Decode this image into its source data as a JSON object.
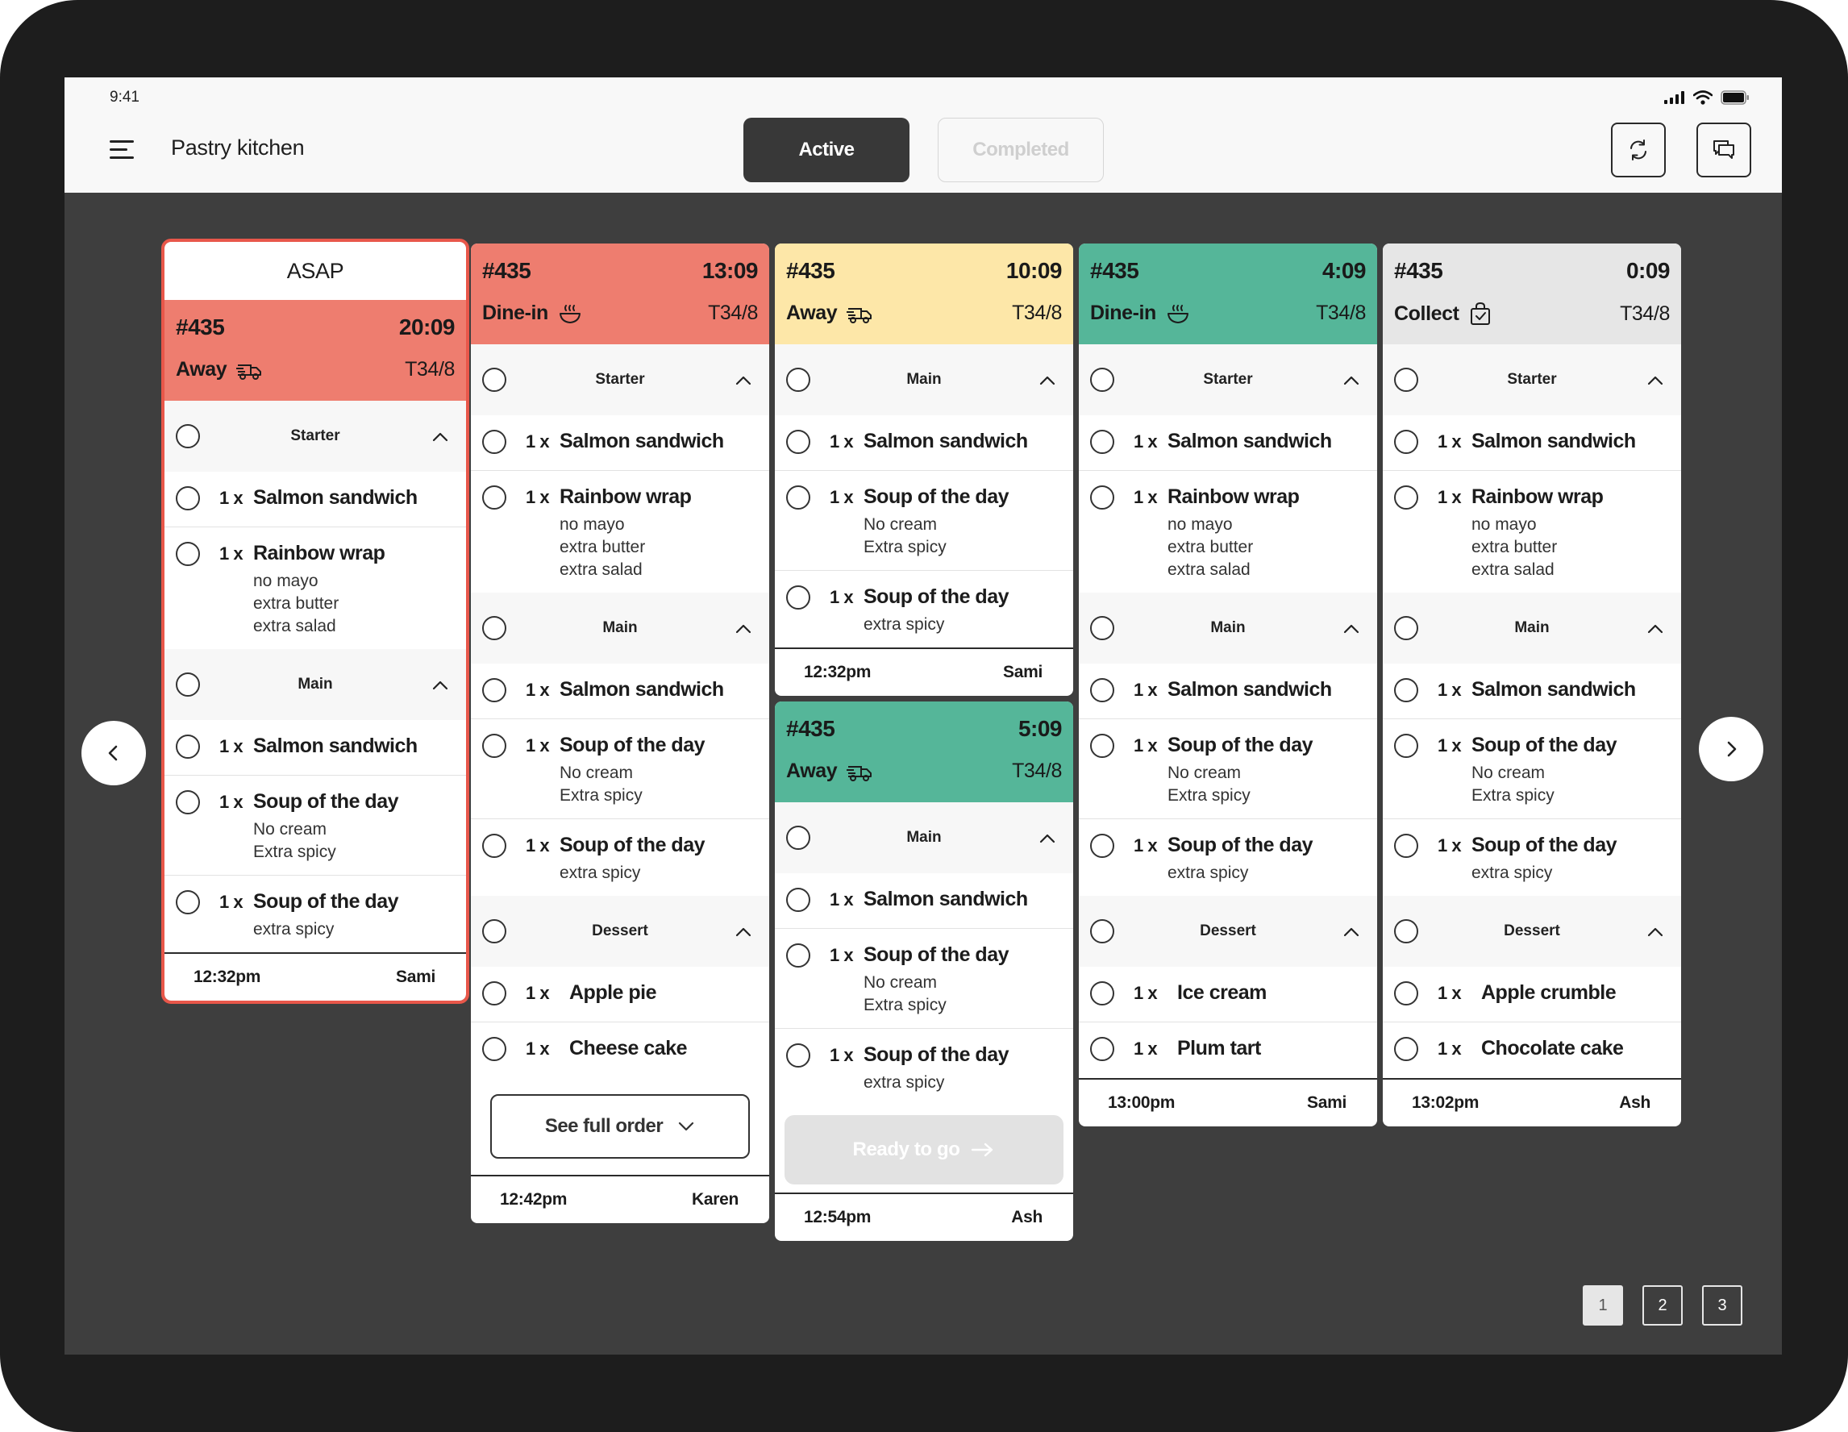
{
  "status_bar": {
    "time": "9:41"
  },
  "header": {
    "title": "Pastry kitchen",
    "tabs": [
      {
        "label": "Active",
        "selected": true
      },
      {
        "label": "Completed",
        "selected": false
      }
    ]
  },
  "columns": [
    {
      "asap_label": "ASAP",
      "order_no": "#435",
      "timer": "20:09",
      "mode": "Away",
      "mode_icon": "delivery-truck-icon",
      "table": "T34/8",
      "color": "#ee7d6f",
      "sections": [
        {
          "name": "Starter",
          "items": [
            {
              "qty": "1 x",
              "name": "Salmon sandwich",
              "mods": []
            },
            {
              "qty": "1 x",
              "name": "Rainbow wrap",
              "mods": [
                "no mayo",
                "extra butter",
                "extra salad"
              ]
            }
          ]
        },
        {
          "name": "Main",
          "items": [
            {
              "qty": "1 x",
              "name": "Salmon sandwich",
              "mods": []
            },
            {
              "qty": "1 x",
              "name": "Soup of the day",
              "mods": [
                "No cream",
                "Extra spicy"
              ]
            },
            {
              "qty": "1 x",
              "name": "Soup of the day",
              "mods": [
                "extra spicy"
              ]
            }
          ]
        }
      ],
      "footer_time": "12:32pm",
      "footer_staff": "Sami"
    },
    {
      "order_no": "#435",
      "timer": "13:09",
      "mode": "Dine-in",
      "mode_icon": "dine-in-bowl-icon",
      "table": "T34/8",
      "color": "#ee7d6f",
      "sections": [
        {
          "name": "Starter",
          "items": [
            {
              "qty": "1 x",
              "name": "Salmon sandwich",
              "mods": []
            },
            {
              "qty": "1 x",
              "name": "Rainbow wrap",
              "mods": [
                "no mayo",
                "extra butter",
                "extra salad"
              ]
            }
          ]
        },
        {
          "name": "Main",
          "items": [
            {
              "qty": "1 x",
              "name": "Salmon sandwich",
              "mods": []
            },
            {
              "qty": "1 x",
              "name": "Soup of the day",
              "mods": [
                "No cream",
                "Extra spicy"
              ]
            },
            {
              "qty": "1 x",
              "name": "Soup of the day",
              "mods": [
                "extra spicy"
              ]
            }
          ]
        },
        {
          "name": "Dessert",
          "items": [
            {
              "qty": "1 x",
              "name": "Apple pie",
              "mods": []
            },
            {
              "qty": "1 x",
              "name": "Cheese cake",
              "mods": []
            }
          ]
        }
      ],
      "full_order_label": "See full order",
      "footer_time": "12:42pm",
      "footer_staff": "Karen"
    },
    {
      "order_no": "#435",
      "timer": "10:09",
      "mode": "Away",
      "mode_icon": "delivery-truck-icon",
      "table": "T34/8",
      "color": "#fde7a8",
      "sections": [
        {
          "name": "Main",
          "items": [
            {
              "qty": "1 x",
              "name": "Salmon sandwich",
              "mods": []
            },
            {
              "qty": "1 x",
              "name": "Soup of the day",
              "mods": [
                "No cream",
                "Extra spicy"
              ]
            },
            {
              "qty": "1 x",
              "name": "Soup of the day",
              "mods": [
                "extra spicy"
              ]
            }
          ]
        }
      ],
      "footer_time": "12:32pm",
      "footer_staff": "Sami"
    },
    {
      "order_no": "#435",
      "timer": "5:09",
      "mode": "Away",
      "mode_icon": "delivery-truck-icon",
      "table": "T34/8",
      "color": "#55b699",
      "sections": [
        {
          "name": "Main",
          "items": [
            {
              "qty": "1 x",
              "name": "Salmon sandwich",
              "mods": []
            },
            {
              "qty": "1 x",
              "name": "Soup of the day",
              "mods": [
                "No cream",
                "Extra spicy"
              ]
            },
            {
              "qty": "1 x",
              "name": "Soup of the day",
              "mods": [
                "extra spicy"
              ]
            }
          ]
        }
      ],
      "ready_label": "Ready to go",
      "footer_time": "12:54pm",
      "footer_staff": "Ash"
    },
    {
      "order_no": "#435",
      "timer": "4:09",
      "mode": "Dine-in",
      "mode_icon": "dine-in-bowl-icon",
      "table": "T34/8",
      "color": "#55b699",
      "sections": [
        {
          "name": "Starter",
          "items": [
            {
              "qty": "1 x",
              "name": "Salmon sandwich",
              "mods": []
            },
            {
              "qty": "1 x",
              "name": "Rainbow wrap",
              "mods": [
                "no mayo",
                "extra butter",
                "extra salad"
              ]
            }
          ]
        },
        {
          "name": "Main",
          "items": [
            {
              "qty": "1 x",
              "name": "Salmon sandwich",
              "mods": []
            },
            {
              "qty": "1 x",
              "name": "Soup of the day",
              "mods": [
                "No cream",
                "Extra spicy"
              ]
            },
            {
              "qty": "1 x",
              "name": "Soup of the day",
              "mods": [
                "extra spicy"
              ]
            }
          ]
        },
        {
          "name": "Dessert",
          "items": [
            {
              "qty": "1 x",
              "name": "Ice cream",
              "mods": []
            },
            {
              "qty": "1 x",
              "name": "Plum tart",
              "mods": []
            }
          ]
        }
      ],
      "footer_time": "13:00pm",
      "footer_staff": "Sami"
    },
    {
      "order_no": "#435",
      "timer": "0:09",
      "mode": "Collect",
      "mode_icon": "collect-bag-icon",
      "table": "T34/8",
      "color": "#e6e6e6",
      "sections": [
        {
          "name": "Starter",
          "items": [
            {
              "qty": "1 x",
              "name": "Salmon sandwich",
              "mods": []
            },
            {
              "qty": "1 x",
              "name": "Rainbow wrap",
              "mods": [
                "no mayo",
                "extra butter",
                "extra salad"
              ]
            }
          ]
        },
        {
          "name": "Main",
          "items": [
            {
              "qty": "1 x",
              "name": "Salmon sandwich",
              "mods": []
            },
            {
              "qty": "1 x",
              "name": "Soup of the day",
              "mods": [
                "No cream",
                "Extra spicy"
              ]
            },
            {
              "qty": "1 x",
              "name": "Soup of the day",
              "mods": [
                "extra spicy"
              ]
            }
          ]
        },
        {
          "name": "Dessert",
          "items": [
            {
              "qty": "1 x",
              "name": "Apple crumble",
              "mods": []
            },
            {
              "qty": "1 x",
              "name": "Chocolate cake",
              "mods": []
            }
          ]
        }
      ],
      "footer_time": "13:02pm",
      "footer_staff": "Ash"
    }
  ],
  "pagination": {
    "pages": [
      "1",
      "2",
      "3"
    ],
    "current": "1"
  }
}
